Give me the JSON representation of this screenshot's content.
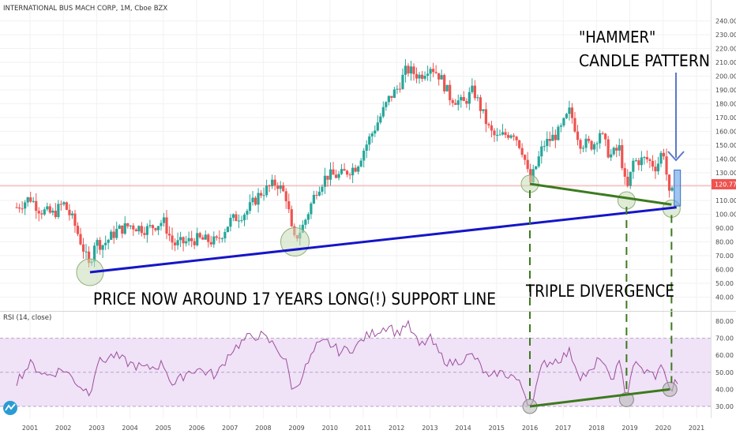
{
  "header": {
    "symbol_title": "INTERNATIONAL BUS MACH CORP, 1M, Cboe BZX"
  },
  "rsi_header": {
    "label": "RSI (14, close)"
  },
  "price_tag": "120.77",
  "annotations": {
    "hammer_line1": "\"HAMMER\"",
    "hammer_line2": "CANDLE PATTERN",
    "support": "PRICE NOW AROUND 17 YEARS LONG(!) SUPPORT LINE",
    "divergence": "TRIPLE DIVERGENCE"
  },
  "colors": {
    "up": "#26a69a",
    "down": "#ef5350",
    "support_line": "#1515c8",
    "divergence_line": "#3d7a1e",
    "rsi_line": "#9c4f9c",
    "rsi_band": "#f0e2f7",
    "price_line": "#ef5350",
    "circle_fill": "#c9dcb8",
    "arrow": "#5b77c8"
  },
  "chart_data": [
    {
      "type": "candlestick",
      "title": "INTERNATIONAL BUS MACH CORP, 1M, Cboe BZX",
      "x_tick_labels": [
        "2001",
        "2002",
        "2003",
        "2004",
        "2005",
        "2006",
        "2007",
        "2008",
        "2009",
        "2010",
        "2011",
        "2012",
        "2013",
        "2014",
        "2015",
        "2016",
        "2017",
        "2018",
        "2019",
        "2020",
        "2021"
      ],
      "y_tick_labels": [
        "40.00",
        "50.00",
        "60.00",
        "70.00",
        "80.00",
        "90.00",
        "100.00",
        "110.00",
        "120.00",
        "130.00",
        "140.00",
        "150.00",
        "160.00",
        "170.00",
        "180.00",
        "190.00",
        "200.00",
        "210.00",
        "220.00",
        "230.00",
        "240.00"
      ],
      "ylim": [
        34,
        244
      ],
      "last_price": 120.77,
      "approx_close_path": [
        [
          2000.6,
          105
        ],
        [
          2001.0,
          112
        ],
        [
          2001.3,
          103
        ],
        [
          2001.7,
          100
        ],
        [
          2002.0,
          108
        ],
        [
          2002.3,
          95
        ],
        [
          2002.6,
          75
        ],
        [
          2002.8,
          60
        ],
        [
          2002.9,
          80
        ],
        [
          2003.2,
          78
        ],
        [
          2003.6,
          88
        ],
        [
          2004.0,
          92
        ],
        [
          2004.5,
          89
        ],
        [
          2005.0,
          95
        ],
        [
          2005.3,
          78
        ],
        [
          2005.7,
          80
        ],
        [
          2006.0,
          82
        ],
        [
          2006.6,
          80
        ],
        [
          2007.0,
          95
        ],
        [
          2007.5,
          102
        ],
        [
          2007.9,
          115
        ],
        [
          2008.4,
          123
        ],
        [
          2008.7,
          112
        ],
        [
          2008.9,
          80
        ],
        [
          2009.2,
          92
        ],
        [
          2009.6,
          118
        ],
        [
          2009.9,
          128
        ],
        [
          2010.3,
          128
        ],
        [
          2010.8,
          135
        ],
        [
          2011.0,
          146
        ],
        [
          2011.5,
          170
        ],
        [
          2011.8,
          185
        ],
        [
          2012.0,
          190
        ],
        [
          2012.3,
          205
        ],
        [
          2012.7,
          200
        ],
        [
          2013.0,
          208
        ],
        [
          2013.3,
          200
        ],
        [
          2013.6,
          185
        ],
        [
          2014.0,
          180
        ],
        [
          2014.3,
          190
        ],
        [
          2014.8,
          160
        ],
        [
          2015.0,
          155
        ],
        [
          2015.5,
          160
        ],
        [
          2015.8,
          145
        ],
        [
          2016.0,
          122
        ],
        [
          2016.4,
          150
        ],
        [
          2016.9,
          160
        ],
        [
          2017.2,
          175
        ],
        [
          2017.5,
          152
        ],
        [
          2017.9,
          150
        ],
        [
          2018.1,
          160
        ],
        [
          2018.4,
          142
        ],
        [
          2018.7,
          148
        ],
        [
          2018.9,
          115
        ],
        [
          2019.1,
          138
        ],
        [
          2019.5,
          140
        ],
        [
          2019.8,
          134
        ],
        [
          2020.0,
          148
        ],
        [
          2020.2,
          110
        ],
        [
          2020.4,
          125
        ]
      ],
      "support_line": [
        [
          2002.8,
          58
        ],
        [
          2020.4,
          105
        ]
      ],
      "divergence_price_line": [
        [
          2016.0,
          122
        ],
        [
          2020.25,
          107
        ]
      ],
      "hammer_candle": {
        "open": 108,
        "high": 132,
        "low": 106,
        "close": 126
      }
    },
    {
      "type": "line",
      "title": "RSI (14, close)",
      "y_tick_labels": [
        "30.00",
        "40.00",
        "50.00",
        "60.00",
        "70.00",
        "80.00"
      ],
      "ylim": [
        24,
        84
      ],
      "band": [
        30,
        70
      ],
      "approx_rsi_path": [
        [
          2000.6,
          45
        ],
        [
          2001.0,
          55
        ],
        [
          2001.5,
          48
        ],
        [
          2002.0,
          52
        ],
        [
          2002.5,
          42
        ],
        [
          2002.8,
          38
        ],
        [
          2003.0,
          55
        ],
        [
          2003.5,
          60
        ],
        [
          2004.0,
          55
        ],
        [
          2004.5,
          52
        ],
        [
          2005.0,
          55
        ],
        [
          2005.3,
          42
        ],
        [
          2005.7,
          50
        ],
        [
          2006.0,
          52
        ],
        [
          2006.6,
          48
        ],
        [
          2007.0,
          62
        ],
        [
          2007.5,
          70
        ],
        [
          2007.9,
          72
        ],
        [
          2008.4,
          65
        ],
        [
          2008.7,
          55
        ],
        [
          2008.9,
          38
        ],
        [
          2009.2,
          50
        ],
        [
          2009.6,
          65
        ],
        [
          2009.9,
          68
        ],
        [
          2010.3,
          62
        ],
        [
          2010.8,
          65
        ],
        [
          2011.0,
          70
        ],
        [
          2011.5,
          75
        ],
        [
          2011.8,
          78
        ],
        [
          2012.0,
          72
        ],
        [
          2012.3,
          79
        ],
        [
          2012.7,
          65
        ],
        [
          2013.0,
          70
        ],
        [
          2013.3,
          60
        ],
        [
          2013.6,
          55
        ],
        [
          2014.0,
          58
        ],
        [
          2014.3,
          60
        ],
        [
          2014.8,
          45
        ],
        [
          2015.0,
          50
        ],
        [
          2015.5,
          48
        ],
        [
          2015.8,
          40
        ],
        [
          2016.0,
          30
        ],
        [
          2016.4,
          55
        ],
        [
          2016.9,
          58
        ],
        [
          2017.2,
          62
        ],
        [
          2017.5,
          48
        ],
        [
          2017.9,
          50
        ],
        [
          2018.1,
          60
        ],
        [
          2018.4,
          45
        ],
        [
          2018.7,
          55
        ],
        [
          2018.9,
          35
        ],
        [
          2019.1,
          55
        ],
        [
          2019.5,
          50
        ],
        [
          2019.8,
          48
        ],
        [
          2020.0,
          55
        ],
        [
          2020.2,
          38
        ],
        [
          2020.4,
          45
        ]
      ],
      "divergence_rsi_line": [
        [
          2016.0,
          30
        ],
        [
          2020.2,
          40
        ]
      ]
    }
  ]
}
